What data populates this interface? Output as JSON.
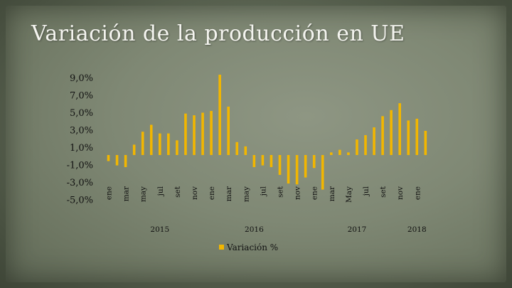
{
  "slide": {
    "title": "Variación de la producción en UE"
  },
  "colors": {
    "bar": "#f2b600",
    "grid": "#9aa08f",
    "text": "#111111",
    "title": "#f4f4ef"
  },
  "chart_data": {
    "type": "bar",
    "title": "",
    "ylabel": "",
    "xlabel": "",
    "y_ticks": [
      "9,0%",
      "7,0%",
      "5,0%",
      "3,0%",
      "1,0%",
      "-1,0%",
      "-3,0%",
      "-5,0%"
    ],
    "ylim": [
      -5,
      10
    ],
    "categories": [
      "ene",
      "",
      "mar",
      "",
      "may",
      "",
      "jul",
      "",
      "set",
      "",
      "nov",
      "",
      "ene",
      "",
      "mar",
      "",
      "may",
      "",
      "jul",
      "",
      "set",
      "",
      "nov",
      "",
      "ene",
      "",
      "mar",
      "",
      "May",
      "",
      "jul",
      "",
      "set",
      "",
      "nov",
      "",
      "ene",
      ""
    ],
    "year_labels": [
      {
        "label": "2015",
        "at_index": 6
      },
      {
        "label": "2016",
        "at_index": 17
      },
      {
        "label": "2017",
        "at_index": 29
      },
      {
        "label": "2018",
        "at_index": 36
      }
    ],
    "series": [
      {
        "name": "Variación %",
        "values": [
          -0.7,
          -1.2,
          -1.4,
          1.2,
          2.7,
          3.5,
          2.5,
          2.5,
          1.7,
          4.8,
          4.6,
          4.9,
          5.1,
          9.3,
          5.6,
          1.5,
          1.0,
          -1.4,
          -1.2,
          -1.4,
          -2.3,
          -3.3,
          -3.4,
          -2.6,
          -1.5,
          -4.0,
          0.3,
          0.6,
          0.3,
          1.8,
          2.3,
          3.2,
          4.5,
          5.2,
          6.0,
          4.0,
          4.2,
          2.8
        ]
      }
    ],
    "legend": "bottom",
    "grid": false
  }
}
